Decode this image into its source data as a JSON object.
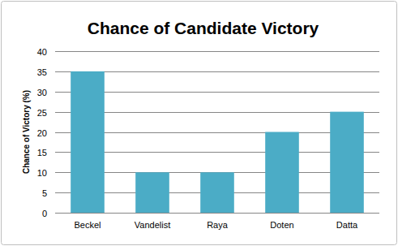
{
  "chart_data": {
    "type": "bar",
    "title": "Chance of Candidate Victory",
    "y_label": "Chance of Victory (%)",
    "categories": [
      "Beckel",
      "Vandelist",
      "Raya",
      "Doten",
      "Datta"
    ],
    "values": [
      35,
      10,
      10,
      20,
      25
    ],
    "color": "#4bacc6",
    "ylim": [
      0,
      40
    ],
    "yticks": [
      0,
      5,
      10,
      15,
      20,
      25,
      30,
      35,
      40
    ],
    "grid": true
  }
}
